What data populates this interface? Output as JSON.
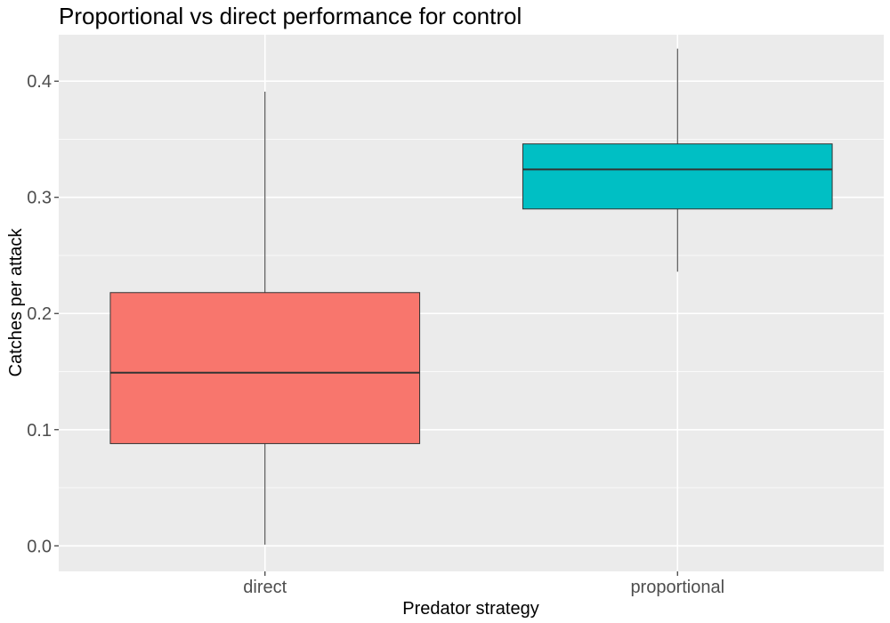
{
  "chart_data": {
    "type": "boxplot",
    "title": "Proportional vs direct performance for control",
    "xlabel": "Predator strategy",
    "ylabel": "Catches per attack",
    "ylim": [
      -0.022,
      0.44
    ],
    "y_ticks": [
      0.0,
      0.1,
      0.2,
      0.3,
      0.4
    ],
    "y_tick_labels": [
      "0.0",
      "0.1",
      "0.2",
      "0.3",
      "0.4"
    ],
    "grid": true,
    "legend": "none",
    "categories": [
      "direct",
      "proportional"
    ],
    "boxes": [
      {
        "category": "direct",
        "whisker_low": 0.001,
        "q1": 0.088,
        "median": 0.149,
        "q3": 0.218,
        "whisker_high": 0.391,
        "color": "#F8766D"
      },
      {
        "category": "proportional",
        "whisker_low": 0.236,
        "q1": 0.29,
        "median": 0.324,
        "q3": 0.346,
        "whisker_high": 0.428,
        "color": "#00BFC4"
      }
    ],
    "panel_color": "#EBEBEB",
    "grid_color": "#FFFFFF"
  }
}
